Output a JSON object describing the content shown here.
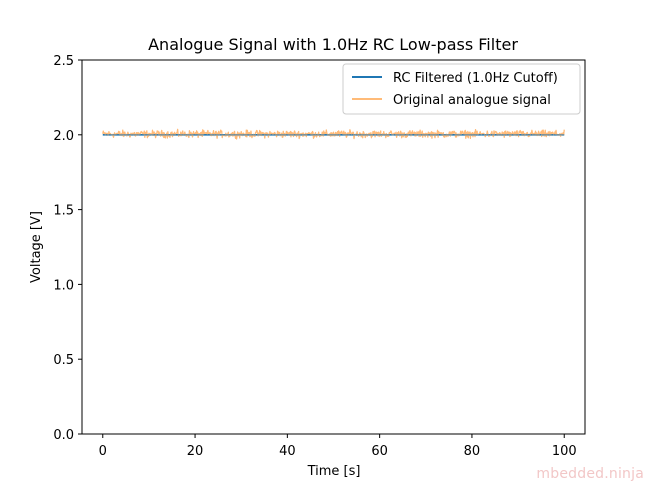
{
  "chart_data": {
    "type": "line",
    "title": "Analogue Signal with 1.0Hz RC Low-pass Filter",
    "xlabel": "Time [s]",
    "ylabel": "Voltage [V]",
    "xlim": [
      -4.5,
      104.5
    ],
    "ylim": [
      0.0,
      2.5
    ],
    "x_ticks": [
      0,
      20,
      40,
      60,
      80,
      100
    ],
    "x_tick_labels": [
      "0",
      "20",
      "40",
      "60",
      "80",
      "100"
    ],
    "y_ticks": [
      0.0,
      0.5,
      1.0,
      1.5,
      2.0,
      2.5
    ],
    "y_tick_labels": [
      "0.0",
      "0.5",
      "1.0",
      "1.5",
      "2.0",
      "2.5"
    ],
    "grid": false,
    "legend_placement": "top-right",
    "series": [
      {
        "name": "RC Filtered (1.0Hz Cutoff)",
        "color": "#1f77b4",
        "x_range": [
          0,
          100
        ],
        "value": 2.0
      },
      {
        "name": "Original analogue signal",
        "color": "#ffbb78",
        "x_range": [
          0,
          100
        ],
        "value": 2.0,
        "noise_band": [
          1.97,
          2.04
        ]
      }
    ]
  },
  "watermark": "mbedded.ninja"
}
